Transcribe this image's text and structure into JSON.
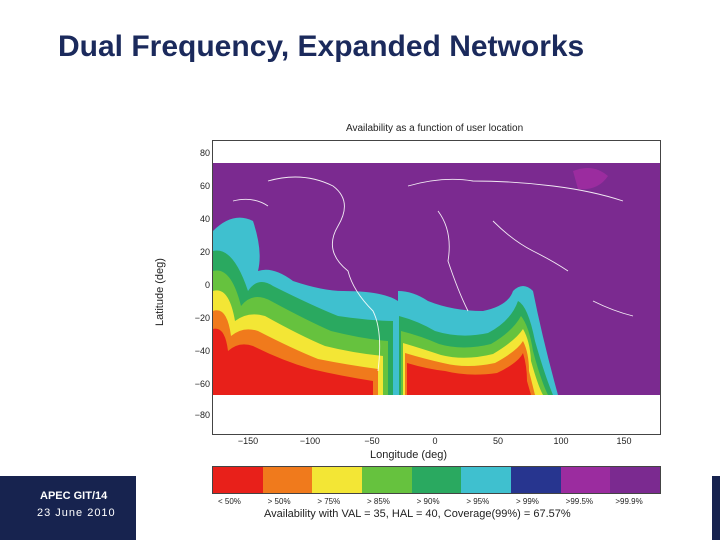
{
  "slide": {
    "title": "Dual Frequency, Expanded Networks",
    "footer_id": "APEC GIT/14",
    "footer_date": "23 June 2010"
  },
  "map": {
    "title": "Availability as a function of user location",
    "xlabel": "Longitude (deg)",
    "ylabel": "Latitude (deg)",
    "x_ticks": [
      "−150",
      "−100",
      "−50",
      "0",
      "50",
      "100",
      "150"
    ],
    "y_ticks": [
      "80",
      "60",
      "40",
      "20",
      "0",
      "−20",
      "−40",
      "−60",
      "−80"
    ],
    "legend": [
      {
        "label": "< 50%",
        "color": "#e8201a"
      },
      {
        "label": "> 50%",
        "color": "#f07a1c"
      },
      {
        "label": "> 75%",
        "color": "#f3e635"
      },
      {
        "label": "> 85%",
        "color": "#66c23e"
      },
      {
        "label": "> 90%",
        "color": "#2aa960"
      },
      {
        "label": "> 95%",
        "color": "#3fc0cf"
      },
      {
        "label": "> 99%",
        "color": "#27358f"
      },
      {
        "label": ">99.5%",
        "color": "#9b2c9f"
      },
      {
        "label": ">99.9%",
        "color": "#7b2a90"
      }
    ],
    "caption": "Availability with VAL = 35,  HAL = 40, Coverage(99%) = 67.57%"
  }
}
